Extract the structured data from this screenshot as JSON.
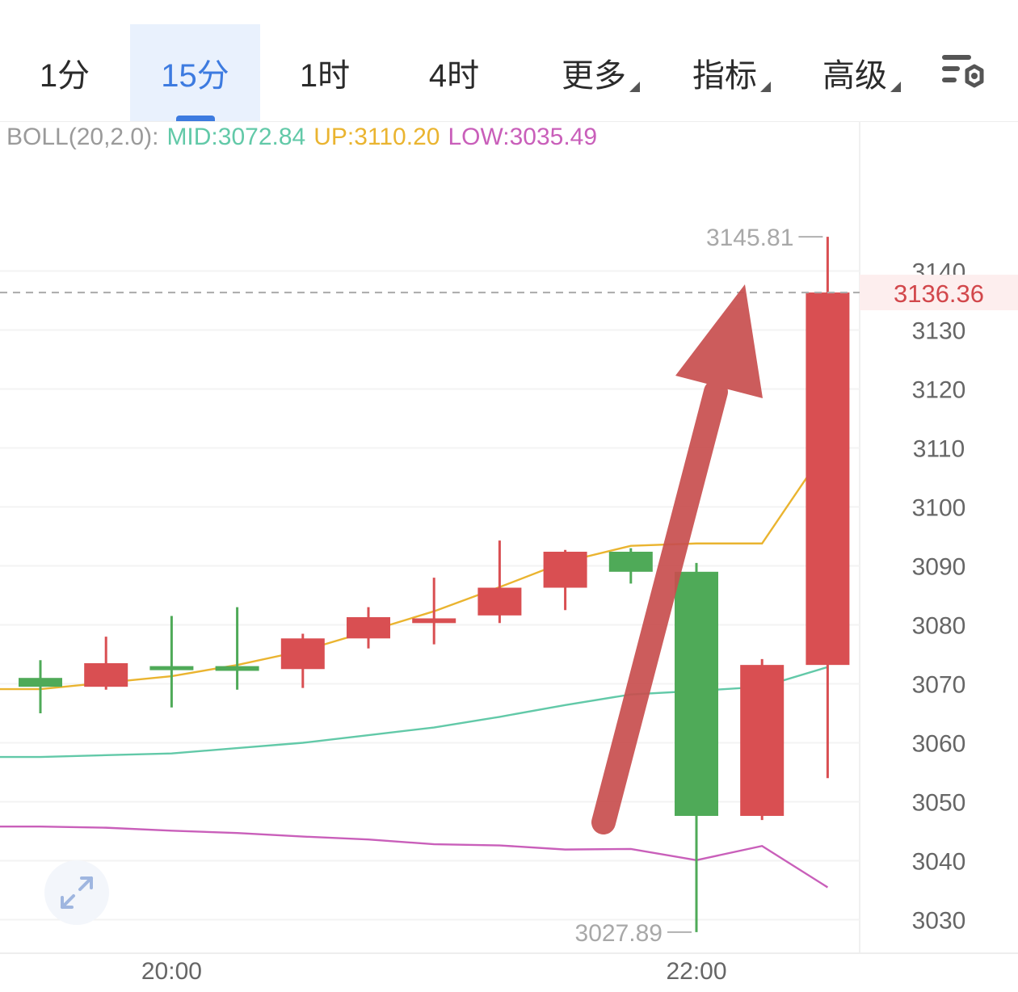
{
  "tabs": [
    {
      "label": "1分",
      "active": false,
      "dropdown": false
    },
    {
      "label": "15分",
      "active": true,
      "dropdown": false
    },
    {
      "label": "1时",
      "active": false,
      "dropdown": false
    },
    {
      "label": "4时",
      "active": false,
      "dropdown": false
    },
    {
      "label": "更多",
      "active": false,
      "dropdown": true
    },
    {
      "label": "指标",
      "active": false,
      "dropdown": true
    },
    {
      "label": "高级",
      "active": false,
      "dropdown": true
    }
  ],
  "settings_icon": "chart-settings-gear-icon",
  "expand_icon": "expand-arrows-icon",
  "indicator": {
    "name": "BOLL(20,2.0):",
    "mid_label": "MID:3072.84",
    "up_label": "UP:3110.20",
    "low_label": "LOW:3035.49"
  },
  "colors": {
    "up_candle": "#d94f52",
    "down_candle": "#4faa58",
    "mid_line": "#62c9a8",
    "up_line": "#eab430",
    "low_line": "#c95fba",
    "active_tab": "#3d7be0",
    "price_tag": "#d2474b",
    "arrow": "#c84f4f"
  },
  "chart_data": {
    "type": "candlestick",
    "y_axis": {
      "ticks": [
        3030,
        3040,
        3050,
        3060,
        3070,
        3080,
        3090,
        3100,
        3110,
        3120,
        3130,
        3140
      ],
      "range": [
        3025,
        3152
      ]
    },
    "x_axis": {
      "tick_labels": [
        "20:00",
        "22:00"
      ]
    },
    "current_price": "3136.36",
    "high_label": "3145.81",
    "low_label": "3027.89",
    "candles": [
      {
        "open": 3071,
        "close": 3069.5,
        "high": 3074,
        "low": 3065
      },
      {
        "open": 3069.5,
        "close": 3073.5,
        "high": 3078,
        "low": 3069
      },
      {
        "open": 3073.0,
        "close": 3072.6,
        "high": 3081.5,
        "low": 3066.0
      },
      {
        "open": 3073,
        "close": 3072.2,
        "high": 3083,
        "low": 3069
      },
      {
        "open": 3072.5,
        "close": 3077.7,
        "high": 3078.5,
        "low": 3069.3
      },
      {
        "open": 3077.7,
        "close": 3081.3,
        "high": 3083.0,
        "low": 3076.0
      },
      {
        "open": 3080.3,
        "close": 3081.1,
        "high": 3088.0,
        "low": 3076.7
      },
      {
        "open": 3081.6,
        "close": 3086.3,
        "high": 3094.3,
        "low": 3080.3
      },
      {
        "open": 3086.3,
        "close": 3092.4,
        "high": 3092.7,
        "low": 3082.5
      },
      {
        "open": 3092.4,
        "close": 3089.0,
        "high": 3093.0,
        "low": 3087.0
      },
      {
        "open": 3089.0,
        "close": 3047.6,
        "high": 3090.5,
        "low": 3027.89
      },
      {
        "open": 3047.6,
        "close": 3073.2,
        "high": 3074.2,
        "low": 3046.9
      },
      {
        "open": 3073.2,
        "close": 3136.36,
        "high": 3145.81,
        "low": 3054.0
      }
    ],
    "boll_mid": [
      3057.6,
      3057.9,
      3058.2,
      3059.1,
      3060.0,
      3061.3,
      3062.6,
      3064.4,
      3066.4,
      3068.2,
      3068.8,
      3069.5,
      3072.84
    ],
    "boll_up": [
      3069.1,
      3070.2,
      3071.3,
      3073.2,
      3075.6,
      3078.9,
      3082.3,
      3086.4,
      3090.7,
      3093.4,
      3093.8,
      3093.8,
      3110.2
    ],
    "boll_low": [
      3045.8,
      3045.6,
      3045.1,
      3044.7,
      3044.1,
      3043.6,
      3042.8,
      3042.6,
      3041.9,
      3042.0,
      3040.1,
      3042.5,
      3035.49
    ]
  }
}
